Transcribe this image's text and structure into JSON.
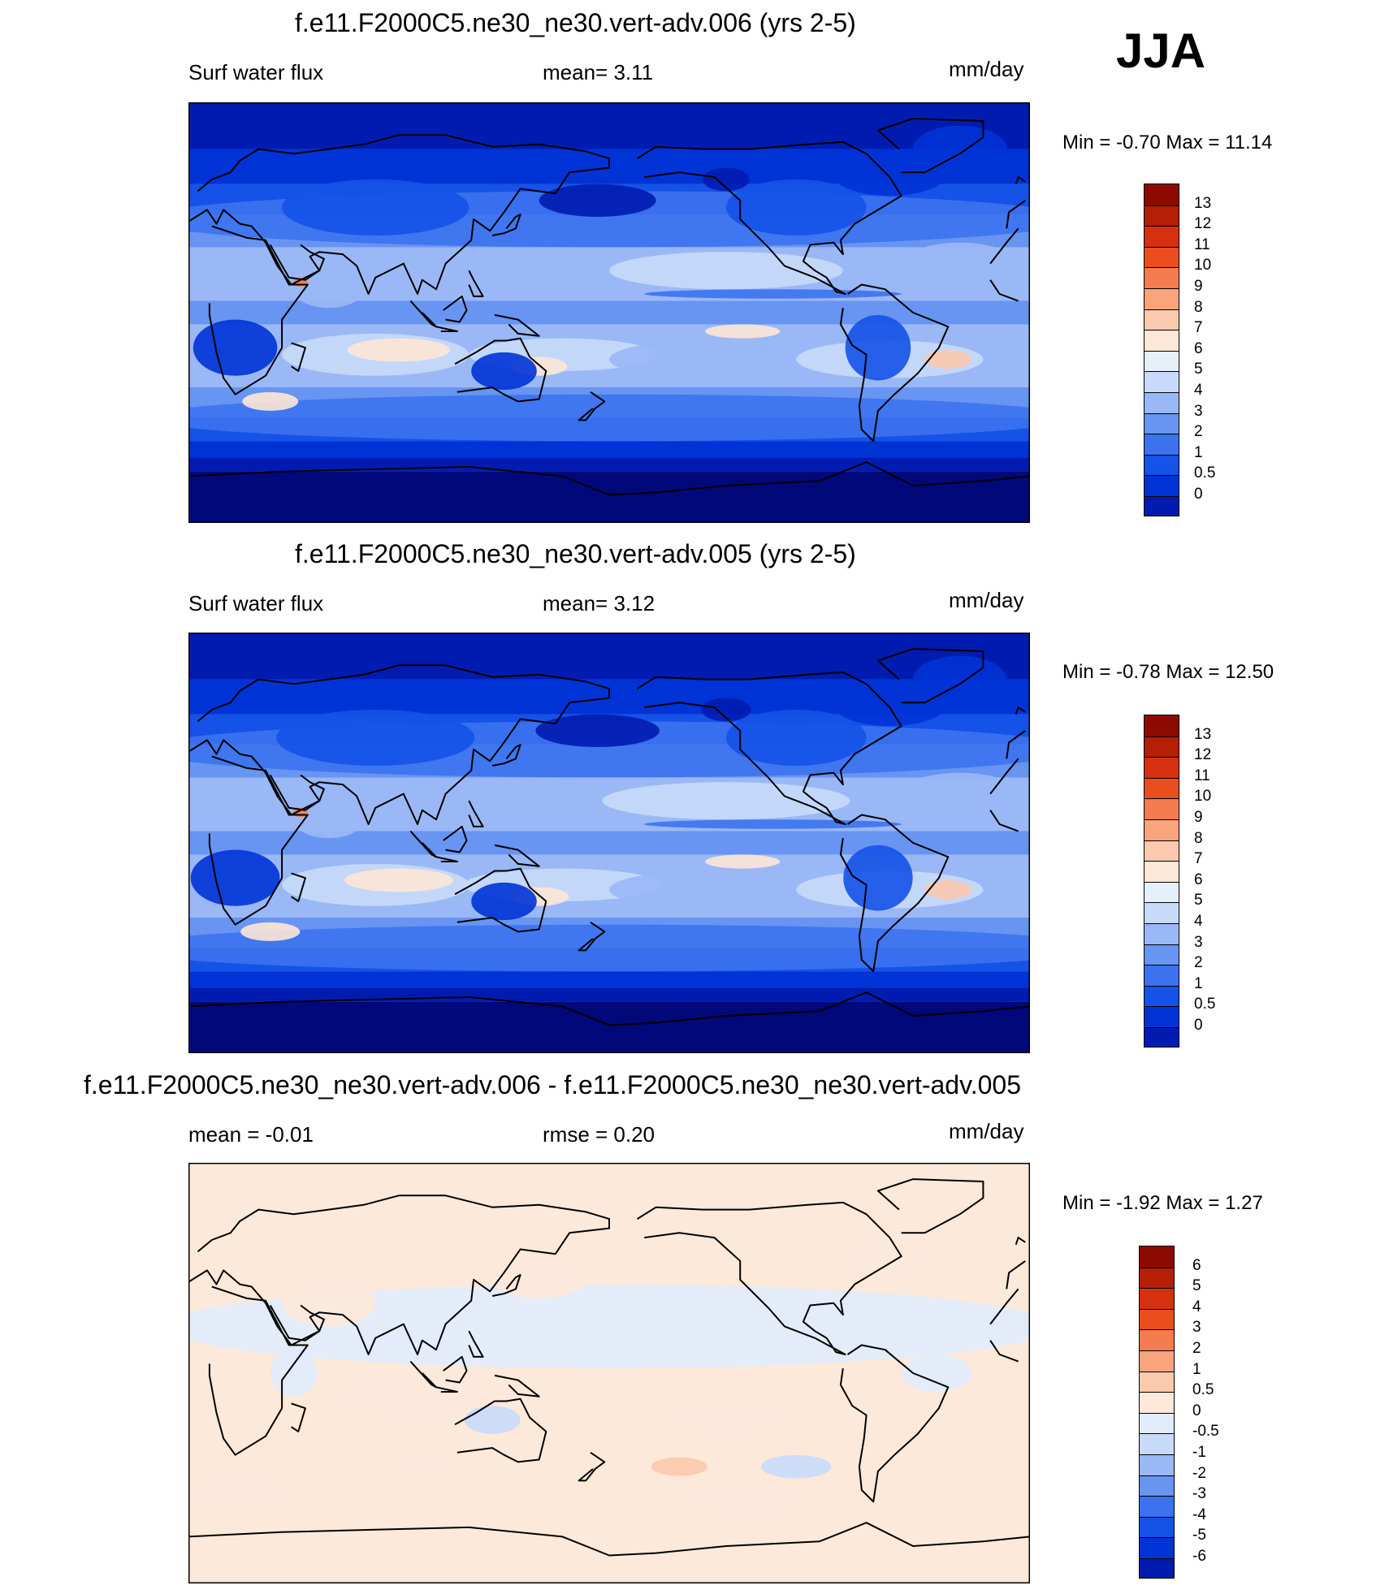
{
  "season_label": "JJA",
  "panels": [
    {
      "title": "f.e11.F2000C5.ne30_ne30.vert-adv.006 (yrs 2-5)",
      "left_label": "Surf water flux",
      "center_label": "mean=   3.11",
      "units": "mm/day",
      "minmax": "Min =  -0.70 Max =  11.14"
    },
    {
      "title": "f.e11.F2000C5.ne30_ne30.vert-adv.005 (yrs 2-5)",
      "left_label": "Surf water flux",
      "center_label": "mean=   3.12",
      "units": "mm/day",
      "minmax": "Min =  -0.78 Max =  12.50"
    },
    {
      "title": "f.e11.F2000C5.ne30_ne30.vert-adv.006 - f.e11.F2000C5.ne30_ne30.vert-adv.005",
      "left_label": "mean =  -0.01",
      "center_label": "rmse =    0.20",
      "units": "mm/day",
      "minmax": "Min =  -1.92 Max =    1.27"
    }
  ],
  "colors": {
    "abs_scale": [
      "#00087a",
      "#001cb0",
      "#0033d6",
      "#1452e8",
      "#3c72ee",
      "#6894f2",
      "#9ab8f6",
      "#c8daf9",
      "#e6f0fb",
      "#fde7d6",
      "#fbc9ad",
      "#f9a47c",
      "#f57c4e",
      "#ea4e1e",
      "#d53110",
      "#b51f06",
      "#8c0a00"
    ],
    "diff_scale": [
      "#00087a",
      "#001cb0",
      "#0033d6",
      "#1452e8",
      "#3c72ee",
      "#6894f2",
      "#9ab8f6",
      "#c8daf9",
      "#e0ecfb",
      "#fde9da",
      "#fbc9ad",
      "#f9a47c",
      "#f57c4e",
      "#ea4e1e",
      "#d53110",
      "#b51f06",
      "#8c0a00"
    ]
  },
  "chart_data": [
    {
      "type": "heatmap",
      "title": "f.e11.F2000C5.ne30_ne30.vert-adv.006 (yrs 2-5)",
      "variable": "Surf water flux",
      "units": "mm/day",
      "mean": 3.11,
      "min": -0.7,
      "max": 11.14,
      "colorbar_levels": [
        "13",
        "12",
        "11",
        "10",
        "9",
        "8",
        "7",
        "6",
        "5",
        "4",
        "3",
        "2",
        "1",
        "0.5",
        "0"
      ]
    },
    {
      "type": "heatmap",
      "title": "f.e11.F2000C5.ne30_ne30.vert-adv.005 (yrs 2-5)",
      "variable": "Surf water flux",
      "units": "mm/day",
      "mean": 3.12,
      "min": -0.78,
      "max": 12.5,
      "colorbar_levels": [
        "13",
        "12",
        "11",
        "10",
        "9",
        "8",
        "7",
        "6",
        "5",
        "4",
        "3",
        "2",
        "1",
        "0.5",
        "0"
      ]
    },
    {
      "type": "heatmap",
      "title": "f.e11.F2000C5.ne30_ne30.vert-adv.006 - f.e11.F2000C5.ne30_ne30.vert-adv.005",
      "units": "mm/day",
      "mean": -0.01,
      "rmse": 0.2,
      "min": -1.92,
      "max": 1.27,
      "colorbar_levels": [
        "6",
        "5",
        "4",
        "3",
        "2",
        "1",
        "0.5",
        "0",
        "-0.5",
        "-1",
        "-2",
        "-3",
        "-4",
        "-5",
        "-6"
      ]
    }
  ]
}
